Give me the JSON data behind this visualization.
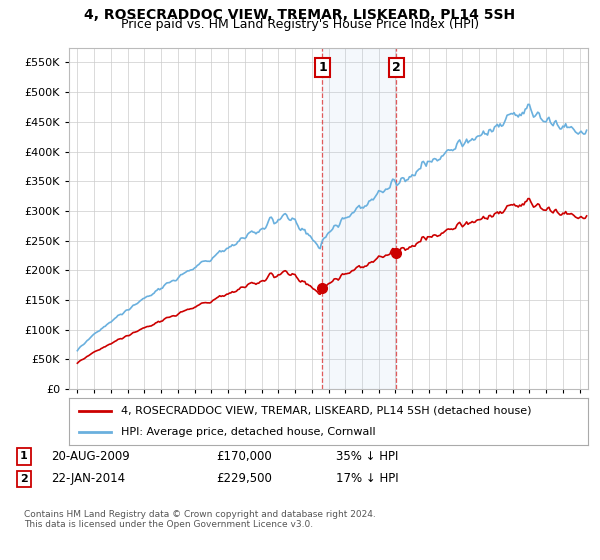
{
  "title": "4, ROSECRADDOC VIEW, TREMAR, LISKEARD, PL14 5SH",
  "subtitle": "Price paid vs. HM Land Registry's House Price Index (HPI)",
  "ylim": [
    0,
    575000
  ],
  "yticks": [
    0,
    50000,
    100000,
    150000,
    200000,
    250000,
    300000,
    350000,
    400000,
    450000,
    500000,
    550000
  ],
  "xlim_start": 1994.5,
  "xlim_end": 2025.5,
  "hpi_color": "#6ab0de",
  "price_color": "#cc0000",
  "sale1_date": 2009.64,
  "sale1_price": 170000,
  "sale2_date": 2014.06,
  "sale2_price": 229500,
  "shade_start": 2009.64,
  "shade_end": 2014.06,
  "legend_label1": "4, ROSECRADDOC VIEW, TREMAR, LISKEARD, PL14 5SH (detached house)",
  "legend_label2": "HPI: Average price, detached house, Cornwall",
  "footer": "Contains HM Land Registry data © Crown copyright and database right 2024.\nThis data is licensed under the Open Government Licence v3.0.",
  "background_color": "#ffffff",
  "grid_color": "#cccccc"
}
